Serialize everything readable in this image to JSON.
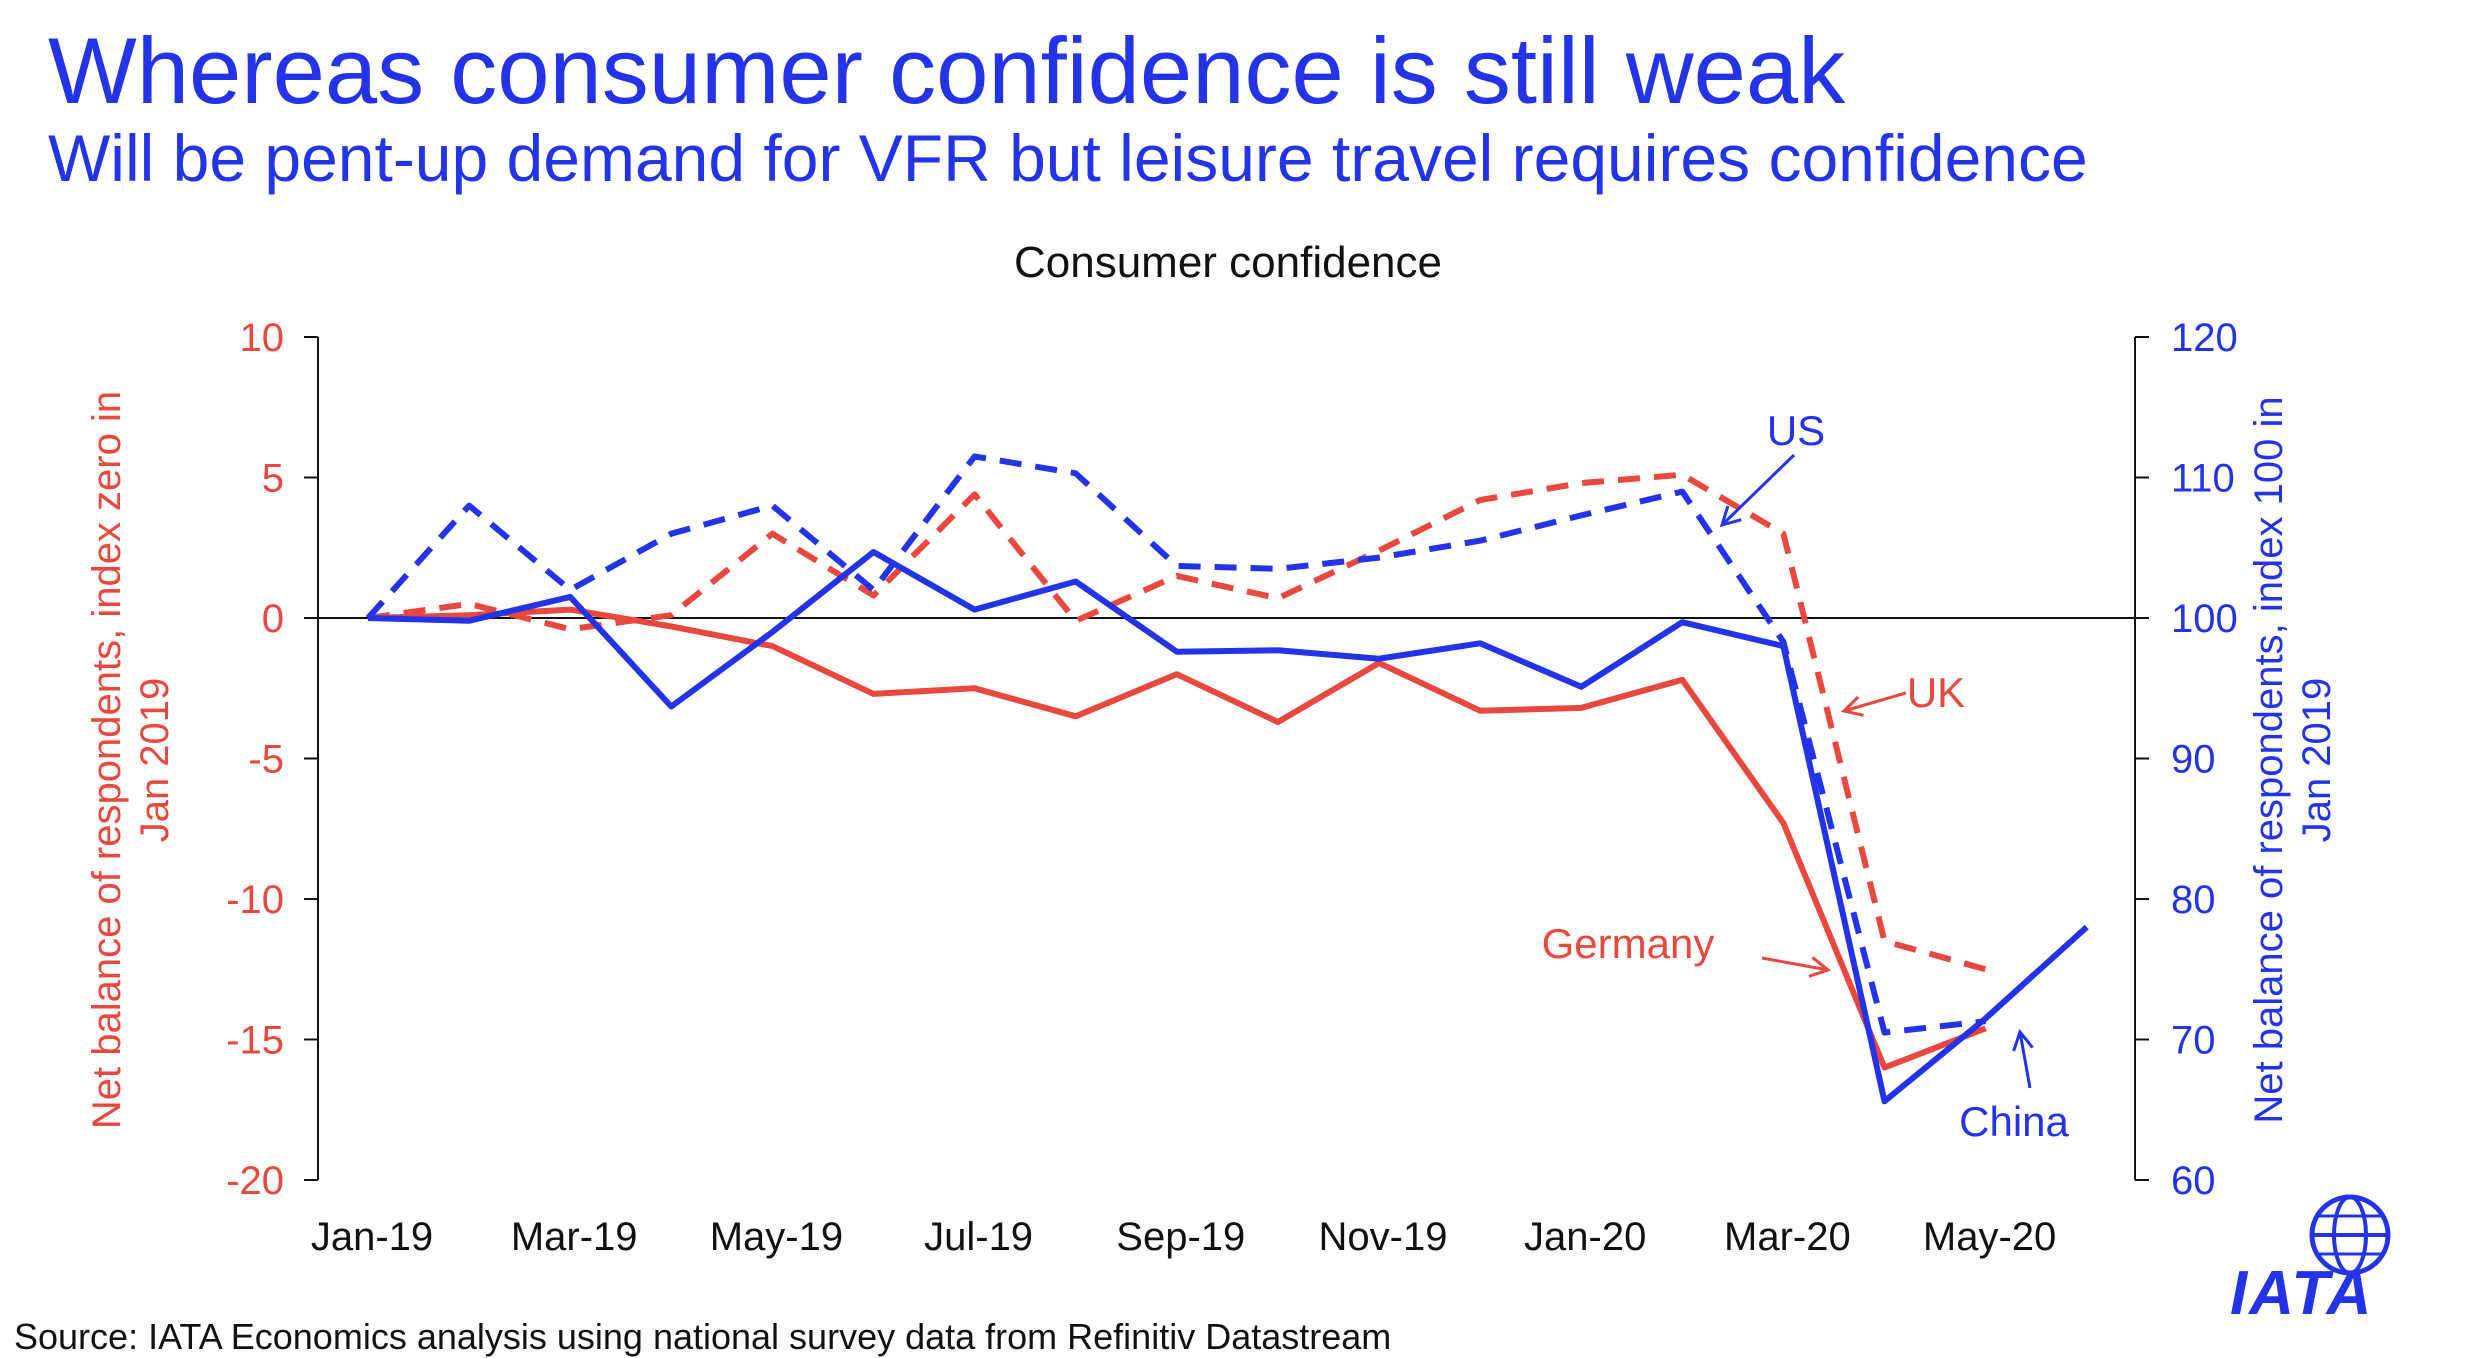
{
  "header": {
    "title": "Whereas consumer confidence is still weak",
    "subtitle": "Will be pent-up demand for VFR but leisure travel requires confidence"
  },
  "footer": {
    "source": "Source: IATA Economics analysis using national survey data from Refinitiv Datastream"
  },
  "logo": {
    "text": "IATA",
    "icon": "globe-icon"
  },
  "colors": {
    "accent": "#2233e8",
    "red": "#e8483d",
    "blue": "#2233e8"
  },
  "chart_data": {
    "type": "line",
    "title": "Consumer confidence",
    "x": [
      "Jan-19",
      "Feb-19",
      "Mar-19",
      "Apr-19",
      "May-19",
      "Jun-19",
      "Jul-19",
      "Aug-19",
      "Sep-19",
      "Oct-19",
      "Nov-19",
      "Dec-19",
      "Jan-20",
      "Feb-20",
      "Mar-20",
      "Apr-20",
      "May-20",
      "Jun-20"
    ],
    "xtick_labels": [
      "Jan-19",
      "Mar-19",
      "May-19",
      "Jul-19",
      "Sep-19",
      "Nov-19",
      "Jan-20",
      "Mar-20",
      "May-20"
    ],
    "y_left": {
      "label": "Net balance of respondents, index zero in Jan 2019",
      "lim": [
        -20,
        10
      ],
      "ticks": [
        10,
        5,
        0,
        -5,
        -10,
        -15,
        -20
      ]
    },
    "y_right": {
      "label": "Net balance of respondents, index 100 in Jan 2019",
      "lim": [
        60,
        120
      ],
      "ticks": [
        120,
        110,
        100,
        90,
        80,
        70,
        60
      ]
    },
    "series": [
      {
        "name": "Germany",
        "axis": "left",
        "style": "solid",
        "color": "#e8483d",
        "values": [
          0,
          0.1,
          0.3,
          -0.3,
          -1.0,
          -2.7,
          -2.5,
          -3.5,
          -2.0,
          -3.7,
          -1.6,
          -3.3,
          -3.2,
          -2.2,
          -7.3,
          -16.0,
          -14.6,
          null
        ]
      },
      {
        "name": "UK",
        "axis": "left",
        "style": "dashed",
        "color": "#e8483d",
        "values": [
          0,
          0.5,
          -0.4,
          0.1,
          3.0,
          0.8,
          4.4,
          -0.1,
          1.5,
          0.7,
          2.4,
          4.2,
          4.8,
          5.1,
          3.0,
          -11.5,
          -12.5,
          null
        ]
      },
      {
        "name": "US",
        "axis": "right",
        "style": "dashed",
        "color": "#2233e8",
        "values": [
          100,
          108,
          102,
          106,
          108,
          102,
          111.5,
          110.3,
          103.7,
          103.5,
          104.3,
          105.5,
          107.3,
          109,
          98.3,
          70.5,
          71.3,
          null
        ]
      },
      {
        "name": "China",
        "axis": "right",
        "style": "solid",
        "color": "#2233e8",
        "values": [
          100,
          99.8,
          101.5,
          93.7,
          99,
          104.7,
          100.6,
          102.6,
          97.6,
          97.7,
          97.1,
          98.2,
          95.1,
          99.7,
          98,
          65.6,
          71.5,
          78
        ]
      }
    ],
    "annotations": [
      {
        "label": "US",
        "color": "#2233e8"
      },
      {
        "label": "UK",
        "color": "#e8483d"
      },
      {
        "label": "Germany",
        "color": "#e8483d"
      },
      {
        "label": "China",
        "color": "#2233e8"
      }
    ],
    "grid": false,
    "legend": "none"
  }
}
